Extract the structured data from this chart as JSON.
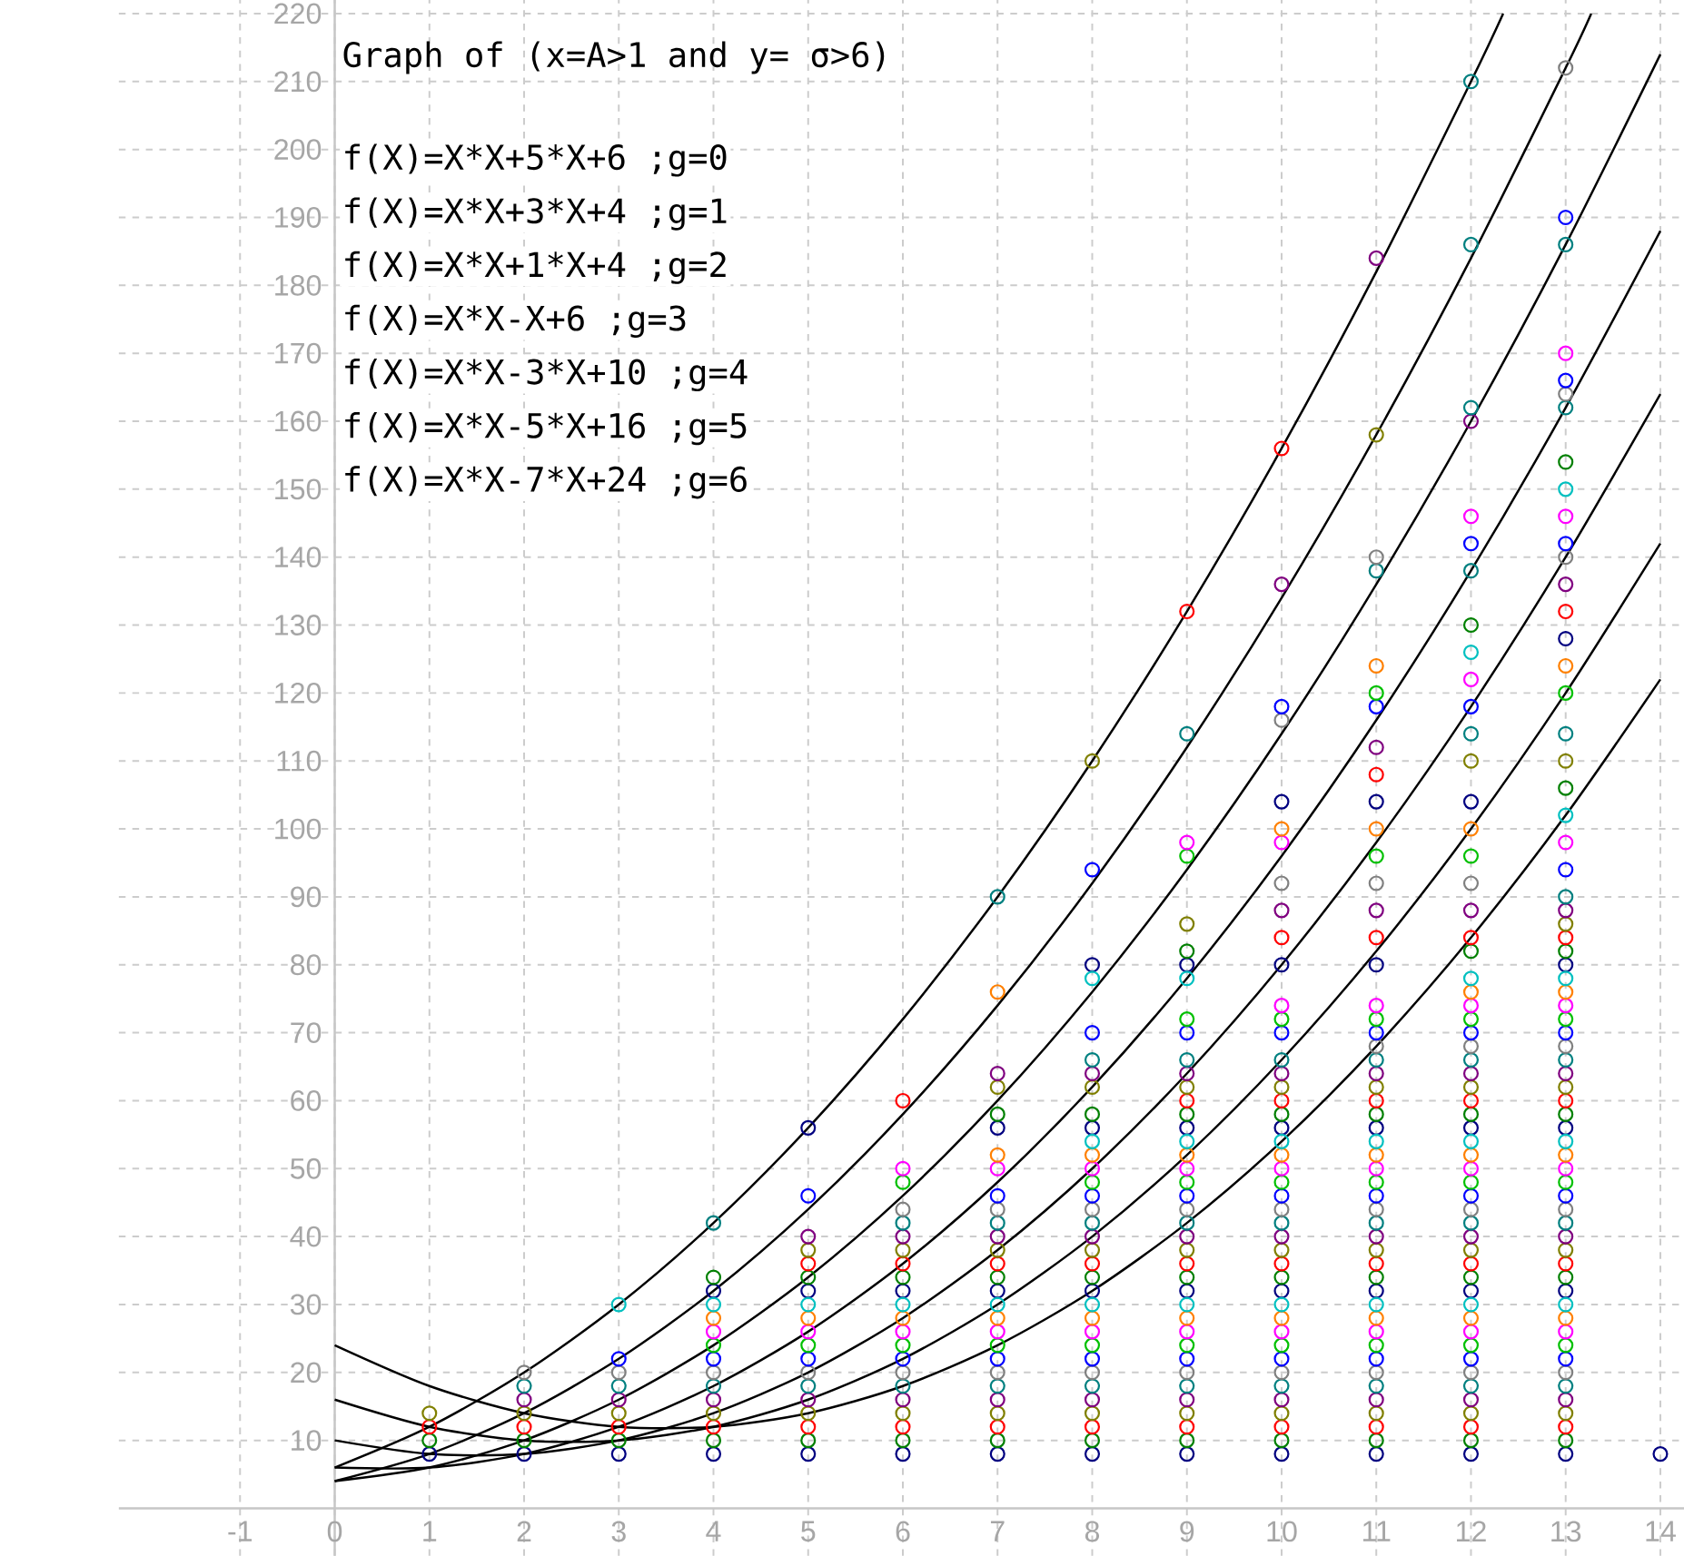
{
  "chart_data": {
    "type": "scatter",
    "title": "Graph of (x=A>1 and y= σ>6)",
    "annotations": [
      "f(X)=X*X+5*X+6 ;g=0",
      "f(X)=X*X+3*X+4 ;g=1",
      "f(X)=X*X+1*X+4 ;g=2",
      "f(X)=X*X-X+6 ;g=3",
      "f(X)=X*X-3*X+10 ;g=4",
      "f(X)=X*X-5*X+16 ;g=5",
      "f(X)=X*X-7*X+24 ;g=6"
    ],
    "xlim": [
      -2.28,
      14.25
    ],
    "ylim": [
      -7,
      222
    ],
    "xticks": [
      -1,
      0,
      1,
      2,
      3,
      4,
      5,
      6,
      7,
      8,
      9,
      10,
      11,
      12,
      13,
      14
    ],
    "yticks": [
      10,
      20,
      30,
      40,
      50,
      60,
      70,
      80,
      90,
      100,
      110,
      120,
      130,
      140,
      150,
      160,
      170,
      180,
      190,
      200,
      210,
      220
    ],
    "grid": true,
    "marker": "circle",
    "series": [
      {
        "color": "#000080",
        "x": [
          1,
          2,
          3,
          4,
          5,
          6,
          7,
          8,
          9,
          10,
          11,
          12,
          13,
          14,
          4,
          5,
          6,
          7,
          8,
          9,
          10,
          11,
          12,
          13,
          5,
          7,
          8,
          9,
          10,
          11,
          12,
          13,
          8,
          9,
          10,
          11,
          13,
          10,
          11,
          12,
          13
        ],
        "values": [
          8,
          8,
          8,
          8,
          8,
          8,
          8,
          8,
          8,
          8,
          8,
          8,
          8,
          8,
          32,
          32,
          32,
          32,
          32,
          32,
          32,
          32,
          32,
          32,
          56,
          56,
          56,
          56,
          56,
          56,
          56,
          56,
          80,
          80,
          80,
          80,
          80,
          104,
          104,
          104,
          128
        ]
      },
      {
        "color": "#008000",
        "x": [
          1,
          2,
          3,
          4,
          5,
          6,
          7,
          8,
          9,
          10,
          11,
          12,
          13,
          4,
          5,
          6,
          7,
          8,
          9,
          10,
          11,
          12,
          13,
          7,
          8,
          9,
          10,
          11,
          12,
          13,
          9,
          12,
          13,
          13,
          12,
          13
        ],
        "values": [
          10,
          10,
          10,
          10,
          10,
          10,
          10,
          10,
          10,
          10,
          10,
          10,
          10,
          34,
          34,
          34,
          34,
          34,
          34,
          34,
          34,
          34,
          34,
          58,
          58,
          58,
          58,
          58,
          58,
          58,
          82,
          82,
          82,
          106,
          130,
          154
        ]
      },
      {
        "color": "#ff0000",
        "x": [
          1,
          2,
          3,
          4,
          5,
          6,
          7,
          8,
          9,
          10,
          11,
          12,
          13,
          5,
          6,
          7,
          8,
          9,
          10,
          11,
          12,
          13,
          6,
          9,
          10,
          11,
          12,
          13,
          10,
          11,
          12,
          13,
          11,
          9,
          13,
          10
        ],
        "values": [
          12,
          12,
          12,
          12,
          12,
          12,
          12,
          12,
          12,
          12,
          12,
          12,
          12,
          36,
          36,
          36,
          36,
          36,
          36,
          36,
          36,
          36,
          60,
          60,
          60,
          60,
          60,
          60,
          84,
          84,
          84,
          84,
          108,
          132,
          132,
          156
        ]
      },
      {
        "color": "#808000",
        "x": [
          1,
          2,
          3,
          4,
          5,
          6,
          7,
          8,
          9,
          10,
          11,
          12,
          13,
          5,
          6,
          7,
          8,
          9,
          10,
          11,
          12,
          13,
          7,
          8,
          9,
          10,
          11,
          12,
          13,
          9,
          13,
          8,
          12,
          13,
          11
        ],
        "values": [
          14,
          14,
          14,
          14,
          14,
          14,
          14,
          14,
          14,
          14,
          14,
          14,
          14,
          38,
          38,
          38,
          38,
          38,
          38,
          38,
          38,
          38,
          62,
          62,
          62,
          62,
          62,
          62,
          62,
          86,
          86,
          110,
          110,
          110,
          158
        ]
      },
      {
        "color": "#800080",
        "x": [
          2,
          3,
          4,
          5,
          6,
          7,
          8,
          9,
          10,
          11,
          12,
          13,
          5,
          6,
          7,
          8,
          9,
          10,
          11,
          12,
          13,
          7,
          8,
          9,
          10,
          11,
          12,
          13,
          10,
          11,
          12,
          13,
          11,
          10,
          13,
          12,
          11
        ],
        "values": [
          16,
          16,
          16,
          16,
          16,
          16,
          16,
          16,
          16,
          16,
          16,
          16,
          40,
          40,
          40,
          40,
          40,
          40,
          40,
          40,
          40,
          64,
          64,
          64,
          64,
          64,
          64,
          64,
          88,
          88,
          88,
          88,
          112,
          136,
          136,
          160,
          184
        ]
      },
      {
        "color": "#008080",
        "x": [
          2,
          3,
          4,
          5,
          6,
          7,
          8,
          9,
          10,
          11,
          12,
          13,
          4,
          6,
          7,
          8,
          9,
          10,
          11,
          12,
          13,
          8,
          9,
          10,
          11,
          12,
          13,
          7,
          13,
          9,
          12,
          13,
          11,
          12,
          12,
          13,
          12,
          13,
          12
        ],
        "values": [
          18,
          18,
          18,
          18,
          18,
          18,
          18,
          18,
          18,
          18,
          18,
          18,
          42,
          42,
          42,
          42,
          42,
          42,
          42,
          42,
          42,
          66,
          66,
          66,
          66,
          66,
          66,
          90,
          90,
          114,
          114,
          114,
          138,
          138,
          162,
          162,
          186,
          186,
          210
        ]
      },
      {
        "color": "#808080",
        "x": [
          2,
          3,
          4,
          5,
          6,
          7,
          8,
          9,
          10,
          11,
          12,
          13,
          6,
          7,
          8,
          9,
          10,
          11,
          12,
          13,
          11,
          12,
          13,
          10,
          11,
          12,
          10,
          11,
          13,
          13,
          13
        ],
        "values": [
          20,
          20,
          20,
          20,
          20,
          20,
          20,
          20,
          20,
          20,
          20,
          20,
          44,
          44,
          44,
          44,
          44,
          44,
          44,
          44,
          68,
          68,
          68,
          92,
          92,
          92,
          116,
          140,
          140,
          164,
          212
        ]
      },
      {
        "color": "#0000ff",
        "x": [
          3,
          4,
          5,
          6,
          7,
          8,
          9,
          10,
          11,
          12,
          13,
          5,
          7,
          8,
          9,
          10,
          11,
          12,
          13,
          8,
          9,
          10,
          11,
          12,
          13,
          8,
          13,
          10,
          11,
          12,
          12,
          13,
          13,
          13
        ],
        "values": [
          22,
          22,
          22,
          22,
          22,
          22,
          22,
          22,
          22,
          22,
          22,
          46,
          46,
          46,
          46,
          46,
          46,
          46,
          46,
          70,
          70,
          70,
          70,
          70,
          70,
          94,
          94,
          118,
          118,
          118,
          142,
          142,
          166,
          190
        ]
      },
      {
        "color": "#00c000",
        "x": [
          4,
          5,
          6,
          7,
          8,
          9,
          10,
          11,
          12,
          13,
          6,
          8,
          9,
          10,
          11,
          12,
          13,
          9,
          10,
          11,
          12,
          13,
          9,
          11,
          12,
          11,
          13
        ],
        "values": [
          24,
          24,
          24,
          24,
          24,
          24,
          24,
          24,
          24,
          24,
          48,
          48,
          48,
          48,
          48,
          48,
          48,
          72,
          72,
          72,
          72,
          72,
          96,
          96,
          96,
          120,
          120
        ]
      },
      {
        "color": "#ff00ff",
        "x": [
          4,
          5,
          6,
          7,
          8,
          9,
          10,
          11,
          12,
          13,
          6,
          7,
          8,
          9,
          10,
          11,
          12,
          13,
          10,
          11,
          12,
          13,
          9,
          10,
          13,
          12,
          12,
          13,
          13
        ],
        "values": [
          26,
          26,
          26,
          26,
          26,
          26,
          26,
          26,
          26,
          26,
          50,
          50,
          50,
          50,
          50,
          50,
          50,
          50,
          74,
          74,
          74,
          74,
          98,
          98,
          98,
          122,
          146,
          146,
          170
        ]
      },
      {
        "color": "#ff8000",
        "x": [
          4,
          5,
          6,
          7,
          8,
          9,
          10,
          11,
          12,
          13,
          7,
          8,
          9,
          10,
          11,
          12,
          13,
          7,
          12,
          13,
          10,
          11,
          12,
          11,
          13
        ],
        "values": [
          28,
          28,
          28,
          28,
          28,
          28,
          28,
          28,
          28,
          28,
          52,
          52,
          52,
          52,
          52,
          52,
          52,
          76,
          76,
          76,
          100,
          100,
          100,
          124,
          124
        ]
      },
      {
        "color": "#00c0c0",
        "x": [
          3,
          4,
          5,
          6,
          7,
          8,
          9,
          10,
          11,
          12,
          13,
          8,
          9,
          10,
          11,
          12,
          13,
          8,
          9,
          12,
          13,
          13,
          12,
          13
        ],
        "values": [
          30,
          30,
          30,
          30,
          30,
          30,
          30,
          30,
          30,
          30,
          30,
          54,
          54,
          54,
          54,
          54,
          54,
          78,
          78,
          78,
          78,
          102,
          126,
          150
        ]
      },
      {
        "type": "line",
        "marker": "none",
        "color": "#000000",
        "x": [
          0,
          1,
          2,
          3,
          4,
          5,
          6,
          7,
          8,
          9,
          10,
          11,
          12,
          12.34
        ],
        "values": [
          6,
          12,
          20,
          30,
          42,
          56,
          72,
          90,
          110,
          132,
          156,
          182,
          210,
          220
        ]
      },
      {
        "type": "line",
        "marker": "none",
        "color": "#000000",
        "x": [
          0,
          1,
          2,
          3,
          4,
          5,
          6,
          7,
          8,
          9,
          10,
          11,
          12,
          13,
          13.27
        ],
        "values": [
          4,
          8,
          14,
          22,
          32,
          44,
          58,
          74,
          92,
          112,
          134,
          158,
          184,
          212,
          220
        ]
      },
      {
        "type": "line",
        "marker": "none",
        "color": "#000000",
        "x": [
          0,
          1,
          2,
          3,
          4,
          5,
          6,
          7,
          8,
          9,
          10,
          11,
          12,
          13,
          14
        ],
        "values": [
          4,
          6,
          10,
          16,
          24,
          34,
          46,
          60,
          76,
          94,
          114,
          136,
          160,
          186,
          214
        ]
      },
      {
        "type": "line",
        "marker": "none",
        "color": "#000000",
        "x": [
          0,
          1,
          2,
          3,
          4,
          5,
          6,
          7,
          8,
          9,
          10,
          11,
          12,
          13,
          14
        ],
        "values": [
          6,
          6,
          8,
          12,
          18,
          26,
          36,
          48,
          62,
          78,
          96,
          116,
          138,
          162,
          188
        ]
      },
      {
        "type": "line",
        "marker": "none",
        "color": "#000000",
        "x": [
          0,
          1,
          2,
          3,
          4,
          5,
          6,
          7,
          8,
          9,
          10,
          11,
          12,
          13,
          14
        ],
        "values": [
          10,
          8,
          8,
          10,
          14,
          20,
          28,
          38,
          50,
          64,
          80,
          98,
          118,
          140,
          164
        ]
      },
      {
        "type": "line",
        "marker": "none",
        "color": "#000000",
        "x": [
          0,
          1,
          2,
          3,
          4,
          5,
          6,
          7,
          8,
          9,
          10,
          11,
          12,
          13,
          14
        ],
        "values": [
          16,
          12,
          10,
          10,
          12,
          16,
          22,
          30,
          40,
          52,
          66,
          82,
          100,
          120,
          142
        ]
      },
      {
        "type": "line",
        "marker": "none",
        "color": "#000000",
        "x": [
          0,
          1,
          2,
          3,
          4,
          5,
          6,
          7,
          8,
          9,
          10,
          11,
          12,
          13,
          14
        ],
        "values": [
          24,
          18,
          14,
          12,
          12,
          14,
          18,
          24,
          32,
          42,
          54,
          68,
          84,
          102,
          122
        ]
      }
    ]
  }
}
